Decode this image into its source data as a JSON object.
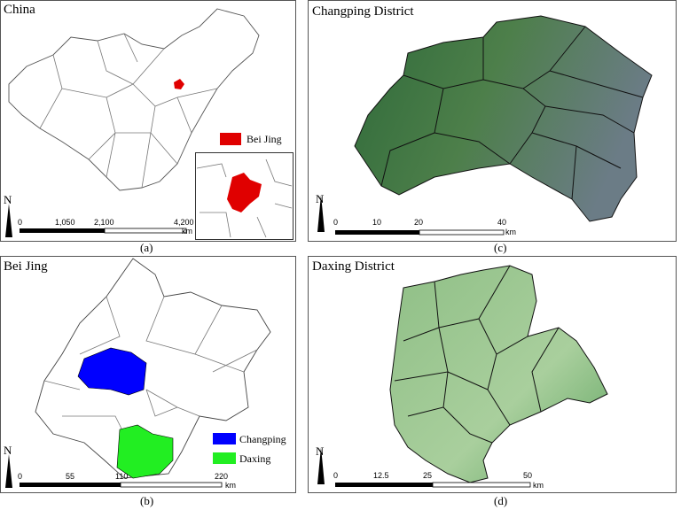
{
  "panels": [
    {
      "title": "China",
      "caption": "(a)",
      "north": "N",
      "scale_labels": [
        "0",
        "1,050",
        "2,100",
        "4,200"
      ],
      "scale_unit": "km",
      "legend": [
        "Bei Jing"
      ]
    },
    {
      "title": "Bei Jing",
      "caption": "(b)",
      "north": "N",
      "scale_labels": [
        "0",
        "55",
        "110",
        "220"
      ],
      "scale_unit": "km",
      "legend": [
        "Changping",
        "Daxing"
      ]
    },
    {
      "title": "Changping District",
      "caption": "(c)",
      "north": "N",
      "scale_labels": [
        "0",
        "10",
        "20",
        "40"
      ],
      "scale_unit": "km"
    },
    {
      "title": "Daxing District",
      "caption": "(d)",
      "north": "N",
      "scale_labels": [
        "0",
        "12.5",
        "25",
        "50"
      ],
      "scale_unit": "km"
    }
  ]
}
